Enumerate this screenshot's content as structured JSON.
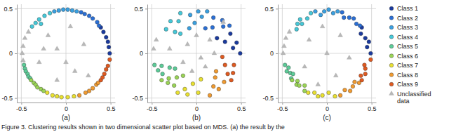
{
  "caption": "Figure 3. Clustering results shown in two dimensional scatter plot based on MDS. (a) the result by the",
  "chart_data": [
    {
      "type": "scatter",
      "xlabel": "(a)",
      "xlim": [
        -0.55,
        0.55
      ],
      "ylim": [
        -0.55,
        0.55
      ],
      "xticks": [
        -0.5,
        0,
        0.5
      ],
      "yticks": [
        -0.5,
        0,
        0.5
      ],
      "grid": true,
      "series": [
        {
          "color": "#1a3a9e",
          "marker": "circle",
          "x": [
            0.49,
            0.48,
            0.47,
            0.45,
            0.42,
            0.39
          ],
          "values": [
            0.0,
            0.07,
            0.13,
            0.18,
            0.24,
            0.29
          ]
        },
        {
          "color": "#2a6fd6",
          "marker": "circle",
          "x": [
            0.37,
            0.35,
            0.3,
            0.26,
            0.21,
            0.17
          ],
          "values": [
            0.31,
            0.35,
            0.39,
            0.42,
            0.44,
            0.46
          ]
        },
        {
          "color": "#3aa0e0",
          "marker": "circle",
          "x": [
            0.12,
            0.07,
            0.02,
            -0.03,
            -0.08,
            -0.13
          ],
          "values": [
            0.47,
            0.48,
            0.49,
            0.49,
            0.48,
            0.47
          ]
        },
        {
          "color": "#45c8d8",
          "marker": "circle",
          "x": [
            -0.18,
            -0.24,
            -0.3,
            -0.34,
            -0.38,
            -0.28
          ],
          "values": [
            0.45,
            0.42,
            0.38,
            0.34,
            0.3,
            0.33
          ]
        },
        {
          "color": "#5ccc98",
          "marker": "circle",
          "x": [
            -0.47,
            -0.46,
            -0.45,
            -0.43,
            -0.42,
            -0.4
          ],
          "values": [
            -0.13,
            -0.17,
            -0.2,
            -0.23,
            -0.26,
            -0.28
          ]
        },
        {
          "color": "#9ad455",
          "marker": "circle",
          "x": [
            -0.39,
            -0.36,
            -0.34,
            -0.32,
            -0.28,
            -0.25
          ],
          "values": [
            -0.3,
            -0.33,
            -0.35,
            -0.38,
            -0.4,
            -0.42
          ]
        },
        {
          "color": "#e8e030",
          "marker": "circle",
          "x": [
            -0.21,
            -0.15,
            -0.1,
            -0.05,
            0.02,
            0.09
          ],
          "values": [
            -0.44,
            -0.47,
            -0.48,
            -0.49,
            -0.49,
            -0.48
          ]
        },
        {
          "color": "#f09a30",
          "marker": "circle",
          "x": [
            0.15,
            0.22,
            0.26,
            0.3,
            0.34,
            0.36
          ],
          "values": [
            -0.47,
            -0.44,
            -0.42,
            -0.39,
            -0.35,
            -0.33
          ]
        },
        {
          "color": "#e05a20",
          "marker": "circle",
          "x": [
            0.39,
            0.41,
            0.43,
            0.45,
            0.47,
            0.49
          ],
          "values": [
            -0.3,
            -0.27,
            -0.23,
            -0.18,
            -0.14,
            -0.07
          ]
        },
        {
          "color": "#b8b8b8",
          "marker": "triangle",
          "x": [
            -0.42,
            -0.46,
            -0.48,
            -0.49,
            -0.48,
            -0.2,
            -0.1,
            0.05,
            0.2,
            -0.3,
            0.1,
            -0.1,
            0.25,
            0.0,
            -0.25
          ],
          "values": [
            0.24,
            0.17,
            0.08,
            0.0,
            -0.08,
            0.2,
            0.05,
            0.3,
            0.1,
            -0.1,
            -0.2,
            -0.3,
            -0.25,
            -0.1,
            0.05
          ]
        }
      ]
    },
    {
      "type": "scatter",
      "xlabel": "(b)",
      "xlim": [
        -0.55,
        0.55
      ],
      "ylim": [
        -0.55,
        0.55
      ],
      "xticks": [
        -0.5,
        0,
        0.5
      ],
      "yticks": [
        -0.5,
        0,
        0.5
      ],
      "grid": true,
      "series": [
        {
          "color": "#1a3a9e",
          "marker": "circle",
          "x": [
            0.49,
            0.41,
            0.45,
            0.32,
            0.38,
            0.23
          ],
          "values": [
            0.0,
            0.06,
            0.12,
            0.13,
            0.22,
            0.17
          ]
        },
        {
          "color": "#2a6fd6",
          "marker": "circle",
          "x": [
            0.37,
            0.3,
            0.29,
            0.18,
            0.19,
            0.1
          ],
          "values": [
            0.31,
            0.3,
            0.37,
            0.29,
            0.4,
            0.28
          ]
        },
        {
          "color": "#3aa0e0",
          "marker": "circle",
          "x": [
            0.12,
            0.06,
            0.02,
            -0.02,
            -0.07,
            -0.08
          ],
          "values": [
            0.47,
            0.41,
            0.47,
            0.34,
            0.43,
            0.28
          ]
        },
        {
          "color": "#45c8d8",
          "marker": "circle",
          "x": [
            -0.18,
            -0.2,
            -0.29,
            -0.24,
            -0.34,
            -0.18
          ],
          "values": [
            0.45,
            0.36,
            0.36,
            0.24,
            0.27,
            0.22
          ]
        },
        {
          "color": "#5ccc98",
          "marker": "circle",
          "x": [
            -0.47,
            -0.39,
            -0.43,
            -0.3,
            -0.38,
            -0.24
          ],
          "values": [
            -0.13,
            -0.14,
            -0.19,
            -0.16,
            -0.23,
            -0.17
          ]
        },
        {
          "color": "#9ad455",
          "marker": "circle",
          "x": [
            -0.39,
            -0.31,
            -0.32,
            -0.22,
            -0.25,
            -0.15
          ],
          "values": [
            -0.3,
            -0.28,
            -0.33,
            -0.27,
            -0.36,
            -0.25
          ]
        },
        {
          "color": "#e8e030",
          "marker": "circle",
          "x": [
            -0.21,
            -0.13,
            -0.1,
            -0.04,
            0.02,
            0.05
          ],
          "values": [
            -0.44,
            -0.4,
            -0.46,
            -0.34,
            -0.44,
            -0.29
          ]
        },
        {
          "color": "#f09a30",
          "marker": "circle",
          "x": [
            0.15,
            0.19,
            0.25,
            0.21,
            0.31,
            0.22
          ],
          "values": [
            -0.47,
            -0.37,
            -0.4,
            -0.27,
            -0.32,
            -0.2
          ]
        },
        {
          "color": "#e05a20",
          "marker": "circle",
          "x": [
            0.39,
            0.35,
            0.41,
            0.32,
            0.42,
            0.29
          ],
          "values": [
            -0.3,
            -0.23,
            -0.22,
            -0.13,
            -0.13,
            -0.04
          ]
        },
        {
          "color": "#b8b8b8",
          "marker": "triangle",
          "x": [
            -0.1,
            0.05,
            -0.3,
            0.15,
            0.0,
            -0.15,
            0.1,
            -0.45,
            -0.48,
            0.2,
            -0.05,
            0.3
          ],
          "values": [
            0.1,
            -0.05,
            0.05,
            0.15,
            0.2,
            -0.1,
            -0.15,
            0.15,
            0.05,
            0.0,
            -0.2,
            0.35
          ]
        }
      ]
    },
    {
      "type": "scatter",
      "xlabel": "(c)",
      "xlim": [
        -0.55,
        0.55
      ],
      "ylim": [
        -0.55,
        0.55
      ],
      "xticks": [
        -0.5,
        0,
        0.5
      ],
      "yticks": [
        -0.5,
        0,
        0.5
      ],
      "grid": true,
      "legend": "right",
      "series": [
        {
          "name": "Class 1",
          "color": "#1a3a9e",
          "marker": "circle",
          "x": [
            0.49,
            0.45,
            0.47,
            0.43,
            0.38,
            0.39
          ],
          "values": [
            0.0,
            0.07,
            0.13,
            0.17,
            0.22,
            0.29
          ]
        },
        {
          "name": "Class 2",
          "color": "#2a6fd6",
          "marker": "circle",
          "x": [
            0.37,
            0.33,
            0.3,
            0.25,
            0.19,
            0.17
          ],
          "values": [
            0.31,
            0.33,
            0.39,
            0.4,
            0.4,
            0.46
          ]
        },
        {
          "name": "Class 3",
          "color": "#3aa0e0",
          "marker": "circle",
          "x": [
            0.12,
            0.07,
            0.02,
            -0.03,
            -0.07,
            -0.13
          ],
          "values": [
            0.47,
            0.45,
            0.49,
            0.47,
            0.43,
            0.47
          ]
        },
        {
          "name": "Class 4",
          "color": "#45c8d8",
          "marker": "circle",
          "x": [
            -0.18,
            -0.22,
            -0.3,
            -0.33,
            -0.34,
            -0.28
          ],
          "values": [
            0.45,
            0.39,
            0.38,
            0.33,
            0.27,
            0.33
          ]
        },
        {
          "name": "Class 5",
          "color": "#5ccc98",
          "marker": "circle",
          "x": [
            -0.47,
            -0.43,
            -0.45,
            -0.41,
            -0.38,
            -0.4
          ],
          "values": [
            -0.13,
            -0.16,
            -0.2,
            -0.22,
            -0.23,
            -0.28
          ]
        },
        {
          "name": "Class 6",
          "color": "#9ad455",
          "marker": "circle",
          "x": [
            -0.39,
            -0.33,
            -0.34,
            -0.31,
            -0.25,
            -0.25
          ],
          "values": [
            -0.3,
            -0.31,
            -0.35,
            -0.36,
            -0.36,
            -0.42
          ]
        },
        {
          "name": "Class 7",
          "color": "#e8e030",
          "marker": "circle",
          "x": [
            -0.21,
            -0.14,
            -0.1,
            -0.05,
            0.02,
            0.09
          ],
          "values": [
            -0.44,
            -0.44,
            -0.48,
            -0.47,
            -0.44,
            -0.48
          ]
        },
        {
          "name": "Class 8",
          "color": "#f09a30",
          "marker": "circle",
          "x": [
            0.15,
            0.2,
            0.26,
            0.29,
            0.31,
            0.36
          ],
          "values": [
            -0.47,
            -0.41,
            -0.42,
            -0.37,
            -0.32,
            -0.33
          ]
        },
        {
          "name": "Class 9",
          "color": "#e05a20",
          "marker": "circle",
          "x": [
            0.39,
            0.38,
            0.43,
            0.43,
            0.42,
            0.49
          ],
          "values": [
            -0.3,
            -0.25,
            -0.23,
            -0.17,
            -0.13,
            -0.07
          ]
        },
        {
          "name": "Unclassified data",
          "color": "#b8b8b8",
          "marker": "triangle",
          "x": [
            -0.42,
            -0.46,
            -0.48,
            -0.49,
            -0.2,
            0.0,
            0.15,
            -0.25,
            0.1,
            -0.05,
            0.25,
            -0.1
          ],
          "values": [
            0.24,
            0.17,
            0.08,
            0.0,
            0.15,
            0.0,
            0.2,
            -0.15,
            -0.25,
            0.3,
            -0.05,
            -0.35
          ]
        }
      ]
    }
  ]
}
